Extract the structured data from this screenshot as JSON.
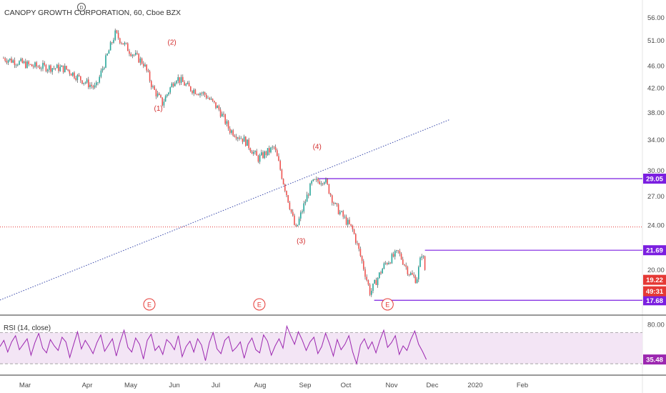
{
  "header": {
    "symbol_title": "CANOPY GROWTH CORPORATION, 60, Cboe BZX"
  },
  "colors": {
    "bull": "#26a69a",
    "bear": "#ef5350",
    "wick": "#333333",
    "price_line": "#e53935",
    "level_line": "#7b1fe0",
    "trend_line": "#3949ab",
    "rsi_line": "#9c27b0",
    "rsi_band": "#f3e5f5",
    "wave_label": "#d32f2f"
  },
  "chart_data": [
    {
      "type": "candlestick",
      "title": "CANOPY GROWTH CORPORATION, 60, Cboe BZX",
      "x_ticks": [
        "Mar",
        "Apr",
        "May",
        "Jun",
        "Jul",
        "Aug",
        "Sep",
        "Oct",
        "Nov",
        "Dec",
        "2020",
        "Feb"
      ],
      "y_scale": "log",
      "y_ticks": [
        "56.00",
        "51.00",
        "46.00",
        "42.00",
        "38.00",
        "34.00",
        "30.00",
        "27.00",
        "24.00",
        "20.00"
      ],
      "ylim": [
        17.0,
        57.5
      ],
      "price_path": [
        {
          "x": "Mar 1",
          "y": 47.5
        },
        {
          "x": "Mar 15",
          "y": 46.0
        },
        {
          "x": "Apr 1",
          "y": 45.5
        },
        {
          "x": "Apr 12",
          "y": 43.5
        },
        {
          "x": "Apr 22",
          "y": 42.0
        },
        {
          "x": "Apr 30",
          "y": 48.0
        },
        {
          "x": "May 5",
          "y": 52.5
        },
        {
          "x": "May 15",
          "y": 49.0
        },
        {
          "x": "May 25",
          "y": 46.5
        },
        {
          "x": "Jun 1",
          "y": 42.0
        },
        {
          "x": "Jun 8",
          "y": 39.5
        },
        {
          "x": "Jun 18",
          "y": 44.0
        },
        {
          "x": "Jun 28",
          "y": 42.0
        },
        {
          "x": "Jul 8",
          "y": 41.0
        },
        {
          "x": "Jul 18",
          "y": 38.5
        },
        {
          "x": "Jul 25",
          "y": 35.5
        },
        {
          "x": "Aug 5",
          "y": 34.0
        },
        {
          "x": "Aug 14",
          "y": 31.5
        },
        {
          "x": "Aug 25",
          "y": 33.0
        },
        {
          "x": "Aug 28",
          "y": 31.0
        },
        {
          "x": "Sep 1",
          "y": 28.5
        },
        {
          "x": "Sep 10",
          "y": 23.5
        },
        {
          "x": "Sep 22",
          "y": 28.5
        },
        {
          "x": "Oct 1",
          "y": 29.0
        },
        {
          "x": "Oct 8",
          "y": 26.0
        },
        {
          "x": "Oct 20",
          "y": 23.5
        },
        {
          "x": "Nov 1",
          "y": 18.2
        },
        {
          "x": "Nov 12",
          "y": 20.5
        },
        {
          "x": "Nov 22",
          "y": 21.5
        },
        {
          "x": "Nov 30",
          "y": 19.8
        },
        {
          "x": "Dec 5",
          "y": 19.2
        },
        {
          "x": "Dec 9",
          "y": 21.6
        },
        {
          "x": "Dec 12",
          "y": 19.22
        }
      ],
      "wave_labels": [
        {
          "label": "(1)",
          "x": "Jun 5",
          "y": 38.3
        },
        {
          "label": "(2)",
          "x": "Jun 15",
          "y": 50.2
        },
        {
          "label": "(3)",
          "x": "Sep 14",
          "y": 22.3
        },
        {
          "label": "(4)",
          "x": "Sep 26",
          "y": 32.8
        }
      ],
      "levels": [
        {
          "label": "29.05",
          "value": 29.05,
          "from": "Sep 27"
        },
        {
          "label": "21.69",
          "value": 21.69,
          "from": "Dec 11"
        },
        {
          "label": "17.68",
          "value": 17.68,
          "from": "Nov 4"
        }
      ],
      "current_price": {
        "label": "19.22",
        "value": 19.22,
        "countdown": "49:31"
      },
      "dotted_level": {
        "value": 23.85
      },
      "trend_line": {
        "from": {
          "x": "Jan 25",
          "y": 17.7
        },
        "to": {
          "x": "Jan 10 2020",
          "y": 37.0
        }
      },
      "earnings_markers": [
        "E",
        "E",
        "E",
        "E"
      ],
      "earnings_dates": [
        "Feb 14",
        "May 29",
        "Aug 15",
        "Nov 14"
      ]
    },
    {
      "type": "line",
      "title": "RSI (14, close)",
      "y_ticks": [
        "80.00"
      ],
      "ylim": [
        20,
        85
      ],
      "band": [
        30,
        70
      ],
      "last_value_label": "35.48",
      "values": [
        52,
        60,
        45,
        58,
        66,
        48,
        55,
        62,
        41,
        57,
        69,
        50,
        44,
        61,
        53,
        47,
        64,
        58,
        38,
        55,
        71,
        49,
        60,
        52,
        43,
        57,
        67,
        46,
        54,
        62,
        40,
        58,
        73,
        51,
        45,
        63,
        55,
        36,
        60,
        68,
        47,
        53,
        42,
        61,
        56,
        48,
        66,
        39,
        52,
        59,
        45,
        62,
        54,
        34,
        57,
        70,
        49,
        43,
        60,
        65,
        46,
        51,
        58,
        37,
        55,
        63,
        48,
        44,
        67,
        59,
        41,
        53,
        62,
        50,
        78,
        66,
        55,
        71,
        60,
        47,
        58,
        64,
        43,
        52,
        69,
        56,
        40,
        61,
        48,
        55,
        66,
        45,
        30,
        54,
        62,
        49,
        58,
        44,
        60,
        73,
        51,
        57,
        66,
        42,
        53,
        47,
        61,
        72,
        55,
        46,
        35.48
      ]
    }
  ]
}
